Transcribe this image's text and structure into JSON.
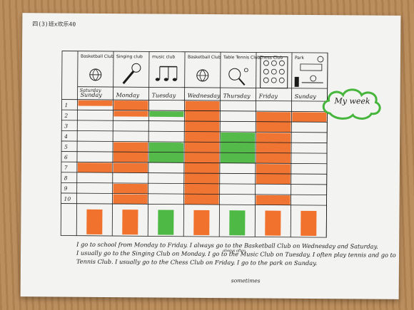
{
  "header": {
    "name_tag": "四(3)班x欢乐40"
  },
  "bubble": {
    "label": "My week"
  },
  "club_labels": [
    "Basketball Club",
    "Singing club",
    "music club",
    "Basketball Club",
    "Table Tennis Club",
    "Chess Club",
    "Park"
  ],
  "days": [
    "Sunday",
    "Monday",
    "Tuesday",
    "Wednesday",
    "Thursday",
    "Friday",
    "Sunday"
  ],
  "day_corrected": "Saturday",
  "rows": [
    "1",
    "2",
    "3",
    "4",
    "5",
    "6",
    "7",
    "8",
    "9",
    "10"
  ],
  "colors": {
    "orange": "#f06a22",
    "green": "#46b53c",
    "ink": "#1a1a1a"
  },
  "paragraph": {
    "line1": "I go to school from Monday to Friday. I always go to the Basketball Club on Wednesday and Saturday.",
    "line2": "I usually go to the Singing Club on Monday. I go to the Music Club on Tuesday. I often play tennis and go to",
    "line3": "Tennis Club. I usually go to the Chess Club on Friday. I go to the park on Sunday.",
    "inserted_word": "sometimes",
    "inserted_word_small": "always often"
  }
}
